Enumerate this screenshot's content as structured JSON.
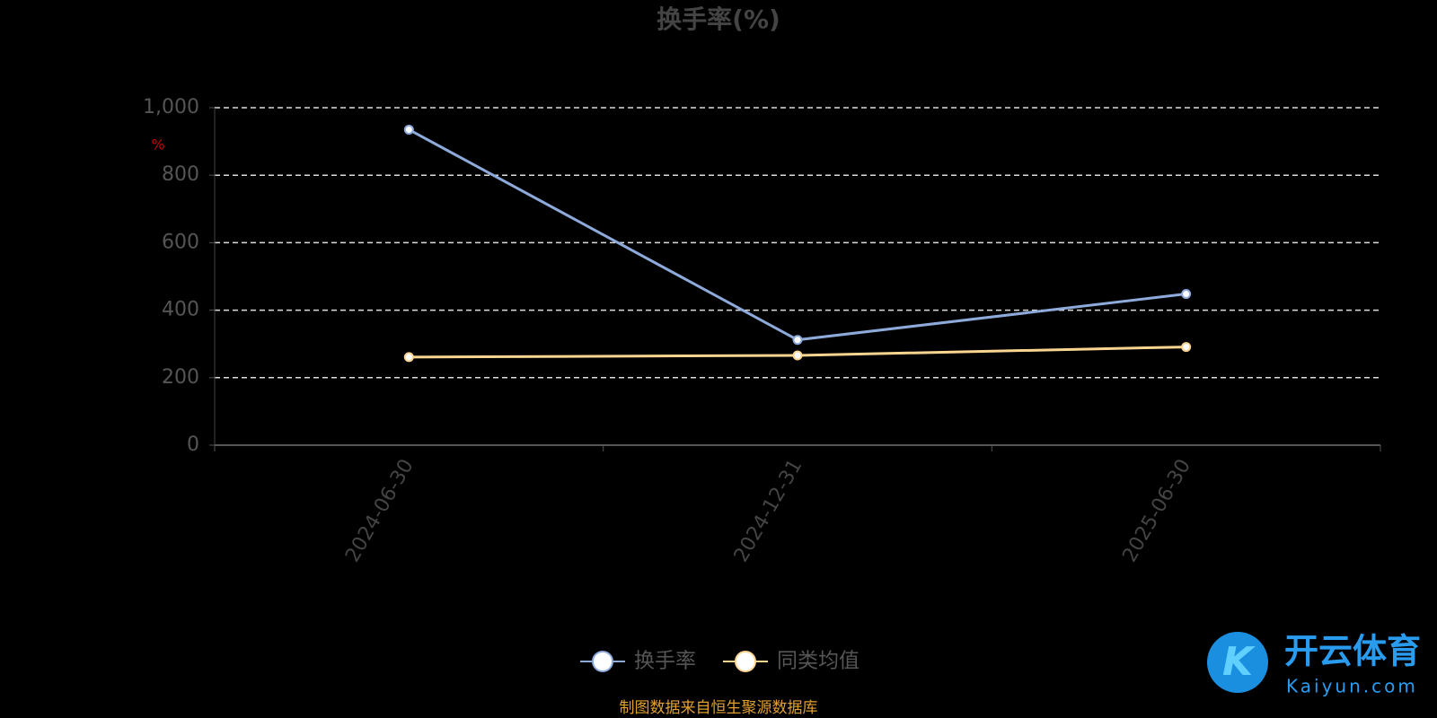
{
  "chart_data": {
    "type": "line",
    "title": "换手率(%)",
    "y_label": "%",
    "categories": [
      "2024-06-30",
      "2024-12-31",
      "2025-06-30"
    ],
    "series": [
      {
        "name": "换手率",
        "color": "#8eaadb",
        "values": [
          935,
          312,
          448
        ]
      },
      {
        "name": "同类均值",
        "color": "#fcd591",
        "values": [
          261,
          266,
          291
        ]
      }
    ],
    "ylim": [
      0,
      1000
    ],
    "yticks": [
      0,
      200,
      400,
      600,
      800,
      {
        "value": 1000,
        "label": "1,000"
      }
    ],
    "grid": true,
    "legend": "bottom",
    "source": "制图数据来自恒生聚源数据库",
    "watermark": {
      "brand": "开云体育",
      "site": "Kaiyun.com"
    }
  }
}
